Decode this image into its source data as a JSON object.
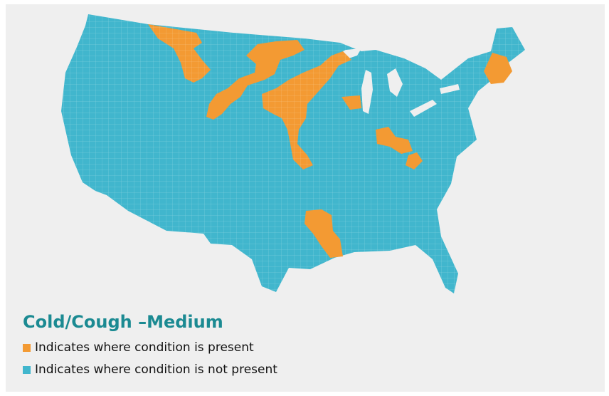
{
  "map": {
    "title": "Cold/Cough –Medium",
    "region": "contiguous-united-states",
    "colors": {
      "present": "#f39a33",
      "not_present": "#41b6cd",
      "title": "#1b8a92",
      "background": "#efefef"
    },
    "legend": [
      {
        "label": "Indicates where condition is present",
        "status": "present"
      },
      {
        "label": "Indicates where condition is not present",
        "status": "not_present"
      }
    ]
  }
}
